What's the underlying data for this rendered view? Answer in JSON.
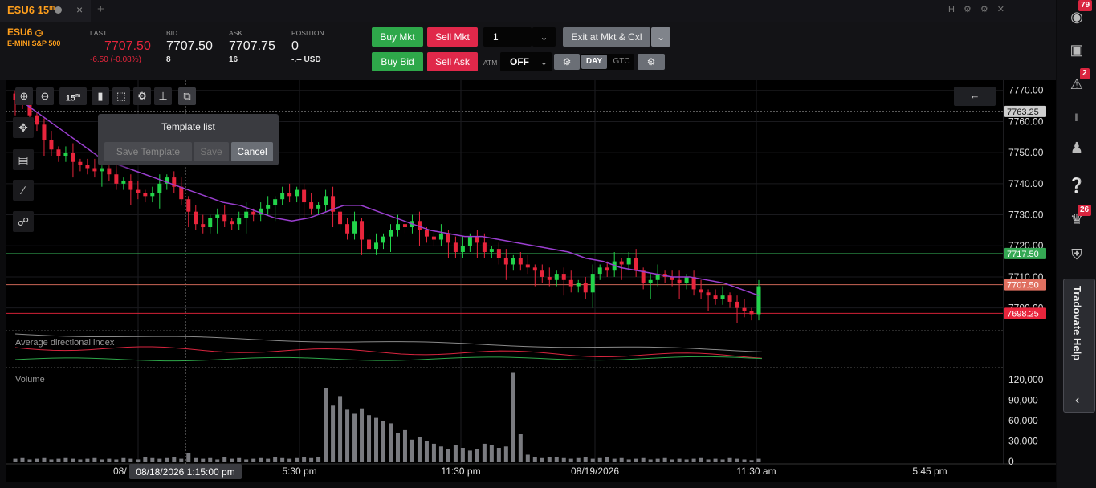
{
  "tab": {
    "symbol": "ESU6",
    "timeframe": "15",
    "timeframe_sup": "m",
    "close": "×",
    "add": "+"
  },
  "window_controls": "H ⚙ ⚙ ✕",
  "quote": {
    "symbol": "ESU6",
    "name": "E-MINI S&P 500",
    "last_label": "LAST",
    "last": "7707.50",
    "change": "-6.50 (-0.08%)",
    "bid_label": "BID",
    "bid": "7707.50",
    "bid_size": "8",
    "ask_label": "ASK",
    "ask": "7707.75",
    "ask_size": "16",
    "position_label": "POSITION",
    "position": "0",
    "position_pnl": "-.-- USD"
  },
  "order": {
    "buy_mkt": "Buy Mkt",
    "sell_mkt": "Sell Mkt",
    "quantity": "1",
    "exit": "Exit at Mkt & Cxl",
    "buy_bid": "Buy Bid",
    "sell_ask": "Sell Ask",
    "atm_label": "ATM",
    "atm_value": "OFF",
    "day": "DAY",
    "gtc": "GTC"
  },
  "chart_toolbar": {
    "timeframe": "15",
    "timeframe_sup": "m"
  },
  "template_popup": {
    "title": "Template list",
    "save_template": "Save Template",
    "save": "Save",
    "cancel": "Cancel"
  },
  "colors": {
    "up": "#22d44a",
    "down": "#e8253c",
    "ma": "#9b3fd0",
    "ask_line": "#e07060",
    "green_line": "#34a853",
    "red_line": "#e8253c"
  },
  "chart_data": {
    "type": "candlestick",
    "symbol": "ESU6",
    "interval": "15m",
    "price_axis": {
      "ticks": [
        "7770.00",
        "7760.00",
        "7750.00",
        "7740.00",
        "7730.00",
        "7720.00",
        "7710.00",
        "7700.00"
      ],
      "range": [
        7695,
        7772
      ]
    },
    "price_labels": [
      {
        "value": 7763.25,
        "text": "7763.25",
        "color": "#cfcfcf"
      },
      {
        "value": 7717.5,
        "text": "7717.50",
        "color": "#34a853"
      },
      {
        "value": 7707.5,
        "text": "7707.50",
        "color": "#e07060"
      },
      {
        "value": 7698.25,
        "text": "7698.25",
        "color": "#e8253c"
      }
    ],
    "x_labels": [
      "08/",
      "5:30 pm",
      "11:30 pm",
      "08/19/2026",
      "11:30 am",
      "5:45 pm"
    ],
    "crosshair_label": "08/18/2026 1:15:00 pm",
    "closes": [
      7767,
      7766,
      7762,
      7759,
      7754,
      7751,
      7749,
      7750,
      7747,
      7746,
      7745,
      7744,
      7745,
      7743,
      7740,
      7741,
      7738,
      7737,
      7736,
      7737,
      7740,
      7742,
      7739,
      7735,
      7731,
      7727,
      7726,
      7729,
      7730,
      7728,
      7727,
      7729,
      7731,
      7730,
      7732,
      7733,
      7735,
      7737,
      7736,
      7738,
      7734,
      7732,
      7733,
      7736,
      7731,
      7727,
      7724,
      7728,
      7722,
      7719,
      7721,
      7723,
      7725,
      7727,
      7726,
      7728,
      7725,
      7723,
      7722,
      7724,
      7721,
      7718,
      7720,
      7723,
      7721,
      7718,
      7719,
      7716,
      7714,
      7716,
      7714,
      7713,
      7712,
      7710,
      7709,
      7711,
      7709,
      7707,
      7708,
      7705,
      7711,
      7713,
      7712,
      7715,
      7714,
      7716,
      7712,
      7708,
      7709,
      7711,
      7710,
      7709,
      7708,
      7710,
      7706,
      7705,
      7704,
      7703,
      7704,
      7702,
      7700,
      7699,
      7698,
      7707
    ],
    "ma_points": [
      7768,
      7764,
      7760,
      7756,
      7752,
      7748,
      7746,
      7744,
      7742,
      7740,
      7738,
      7736,
      7734,
      7733,
      7731,
      7729,
      7728,
      7729,
      7731,
      7733,
      7733,
      7731,
      7729,
      7727,
      7725,
      7724,
      7723,
      7723,
      7722,
      7721,
      7720,
      7719,
      7718,
      7716,
      7715,
      7713,
      7712,
      7711,
      7710,
      7710,
      7709,
      7708,
      7706,
      7704
    ],
    "indicators": [
      {
        "name": "Average directional index",
        "series": [
          "ADX",
          "+DI",
          "-DI"
        ]
      },
      {
        "name": "Volume",
        "axis_ticks": [
          "120,000",
          "90,000",
          "60,000",
          "30,000",
          "0"
        ],
        "values": [
          4000,
          5000,
          3000,
          4000,
          5000,
          3000,
          4000,
          5000,
          4000,
          3000,
          4000,
          5000,
          3000,
          4000,
          3000,
          5000,
          4000,
          3000,
          6000,
          5000,
          4000,
          5000,
          6000,
          4000,
          12000,
          5000,
          4000,
          5000,
          3000,
          6000,
          4000,
          5000,
          3000,
          4000,
          5000,
          4000,
          6000,
          5000,
          4000,
          5000,
          6000,
          5000,
          6000,
          108000,
          82000,
          96000,
          76000,
          70000,
          78000,
          68000,
          64000,
          60000,
          56000,
          42000,
          46000,
          32000,
          36000,
          30000,
          26000,
          22000,
          18000,
          24000,
          20000,
          16000,
          18000,
          26000,
          24000,
          20000,
          22000,
          130000,
          40000,
          10000,
          6000,
          5000,
          7000,
          6000,
          5000,
          4000,
          5000,
          6000,
          4000,
          5000,
          6000,
          4000,
          5000,
          3000,
          4000,
          5000,
          3000,
          4000,
          5000,
          3000,
          4000,
          3000,
          4000,
          5000,
          3000,
          4000,
          3000,
          5000,
          4000,
          3000,
          2000,
          4000
        ]
      }
    ]
  },
  "sidebar": {
    "badge_top": "79",
    "badge_alert": "2",
    "badge_trophy": "26",
    "help": "Tradovate Help",
    "collapse": "‹"
  }
}
